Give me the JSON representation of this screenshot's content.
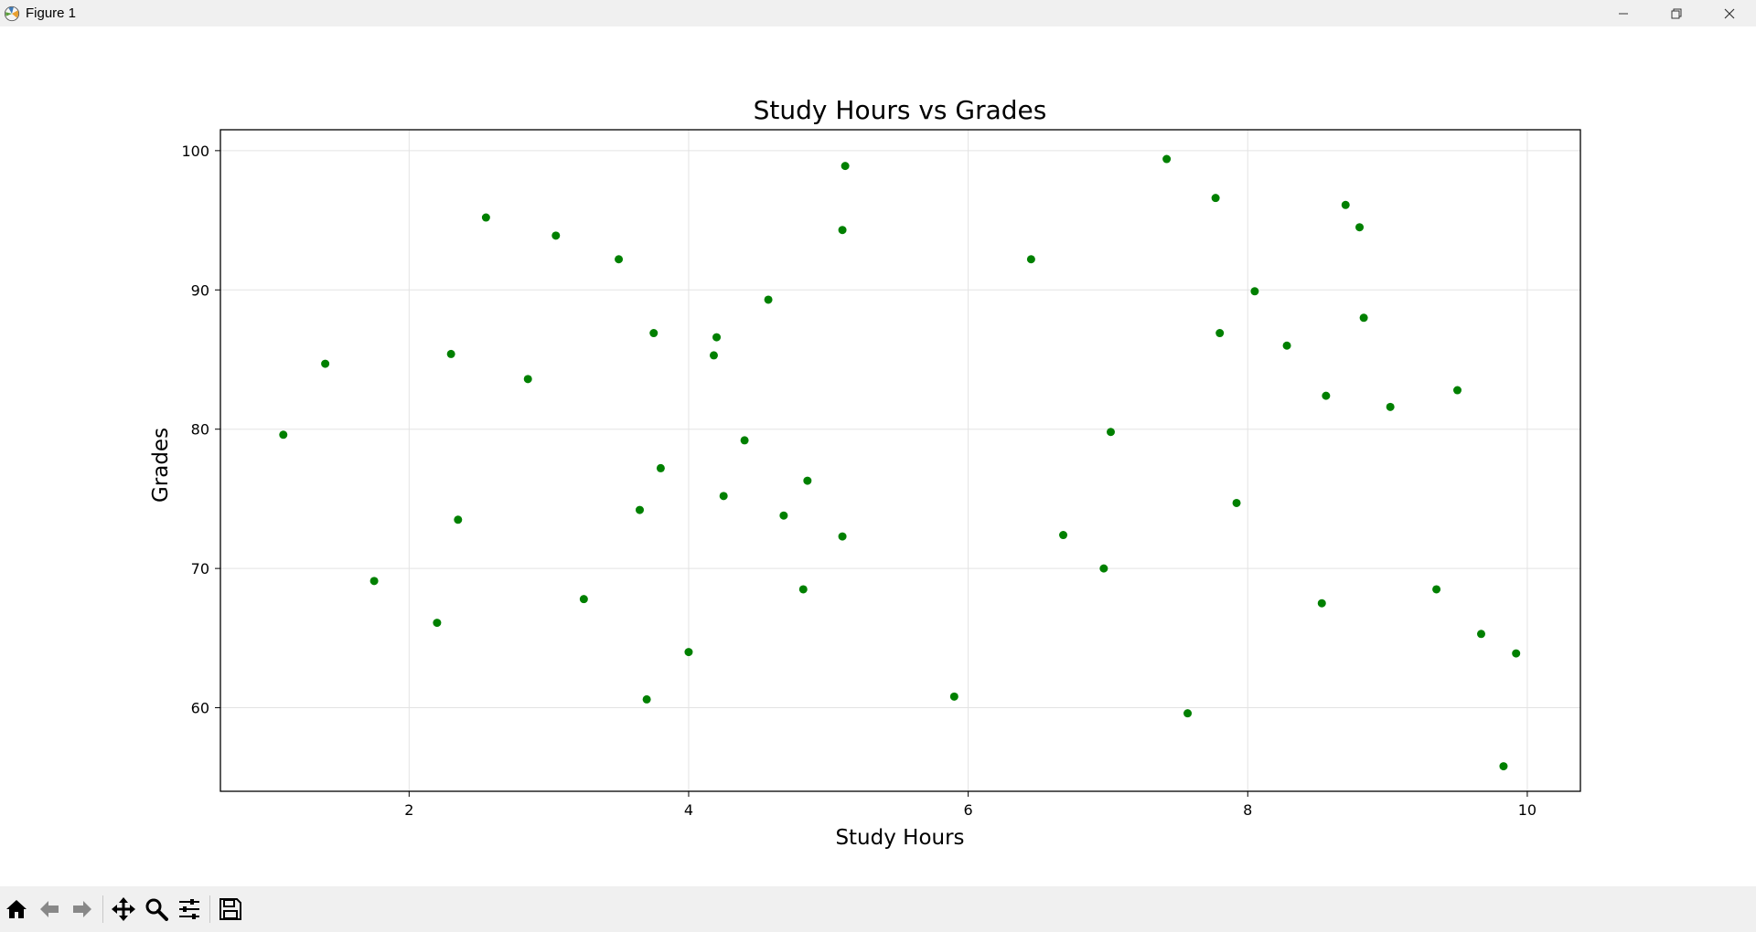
{
  "window": {
    "title": "Figure 1",
    "app_icon": "matplotlib-icon",
    "controls": [
      "minimize-icon",
      "restore-icon",
      "close-icon"
    ]
  },
  "toolbar": {
    "tools": [
      {
        "name": "home-icon",
        "tooltip": "Reset original view"
      },
      {
        "name": "back-arrow-icon",
        "tooltip": "Back to previous view"
      },
      {
        "name": "forward-arrow-icon",
        "tooltip": "Forward to next view"
      },
      {
        "name": "pan-icon",
        "tooltip": "Pan axes"
      },
      {
        "name": "zoom-icon",
        "tooltip": "Zoom to rectangle"
      },
      {
        "name": "configure-subplots-icon",
        "tooltip": "Configure subplots"
      },
      {
        "name": "save-icon",
        "tooltip": "Save the figure"
      }
    ]
  },
  "chart_data": {
    "type": "scatter",
    "title": "Study Hours vs Grades",
    "xlabel": "Study Hours",
    "ylabel": "Grades",
    "xlim": [
      0.65,
      10.38
    ],
    "ylim": [
      54,
      101.5
    ],
    "xticks": [
      2,
      4,
      6,
      8,
      10
    ],
    "yticks": [
      60,
      70,
      80,
      90,
      100
    ],
    "grid": true,
    "point_color": "#008000",
    "points": [
      [
        1.1,
        79.6
      ],
      [
        1.4,
        84.7
      ],
      [
        1.75,
        69.1
      ],
      [
        2.2,
        66.1
      ],
      [
        2.3,
        85.4
      ],
      [
        2.35,
        73.5
      ],
      [
        2.55,
        95.2
      ],
      [
        2.85,
        83.6
      ],
      [
        3.05,
        93.9
      ],
      [
        3.25,
        67.8
      ],
      [
        3.5,
        92.2
      ],
      [
        3.65,
        74.2
      ],
      [
        3.7,
        60.6
      ],
      [
        3.75,
        86.9
      ],
      [
        3.8,
        77.2
      ],
      [
        4.0,
        64.0
      ],
      [
        4.18,
        85.3
      ],
      [
        4.2,
        86.6
      ],
      [
        4.25,
        75.2
      ],
      [
        4.4,
        79.2
      ],
      [
        4.57,
        89.3
      ],
      [
        4.68,
        73.8
      ],
      [
        4.82,
        68.5
      ],
      [
        4.85,
        76.3
      ],
      [
        5.1,
        94.3
      ],
      [
        5.1,
        72.3
      ],
      [
        5.12,
        98.9
      ],
      [
        5.9,
        60.8
      ],
      [
        6.45,
        92.2
      ],
      [
        6.68,
        72.4
      ],
      [
        6.97,
        70.0
      ],
      [
        7.02,
        79.8
      ],
      [
        7.42,
        99.4
      ],
      [
        7.57,
        59.6
      ],
      [
        7.77,
        96.6
      ],
      [
        7.8,
        86.9
      ],
      [
        7.92,
        74.7
      ],
      [
        8.05,
        89.9
      ],
      [
        8.28,
        86.0
      ],
      [
        8.53,
        67.5
      ],
      [
        8.56,
        82.4
      ],
      [
        8.7,
        96.1
      ],
      [
        8.8,
        94.5
      ],
      [
        8.83,
        88.0
      ],
      [
        9.02,
        81.6
      ],
      [
        9.35,
        68.5
      ],
      [
        9.5,
        82.8
      ],
      [
        9.67,
        65.3
      ],
      [
        9.83,
        55.8
      ],
      [
        9.92,
        63.9
      ]
    ]
  }
}
